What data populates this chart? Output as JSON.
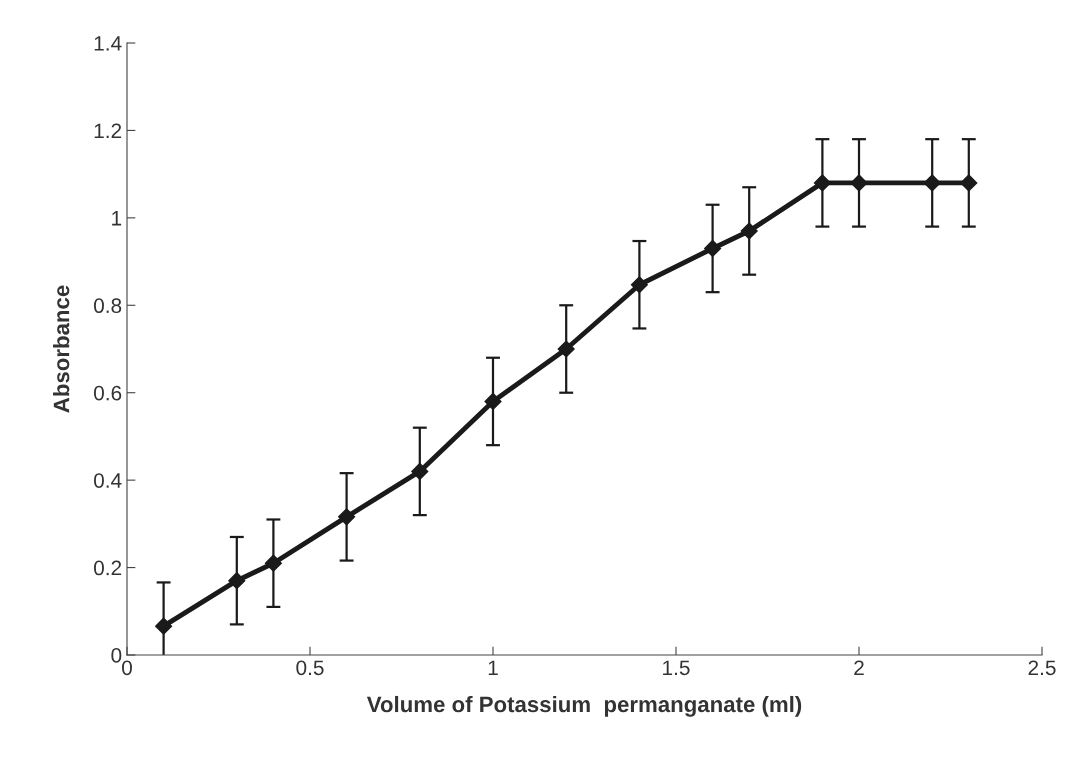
{
  "chart_data": {
    "type": "line",
    "xlabel": "Volume of Potassium  permanganate (ml)",
    "ylabel": "Absorbance",
    "x": [
      0.1,
      0.3,
      0.4,
      0.6,
      0.8,
      1.0,
      1.2,
      1.4,
      1.6,
      1.7,
      1.9,
      2.0,
      2.2,
      2.3
    ],
    "series": [
      {
        "color": "#1a1a1a",
        "values": [
          0.066,
          0.17,
          0.21,
          0.316,
          0.42,
          0.58,
          0.7,
          0.847,
          0.93,
          0.97,
          1.08,
          1.08,
          1.08,
          1.08
        ],
        "errors": [
          0.1,
          0.1,
          0.1,
          0.1,
          0.1,
          0.1,
          0.1,
          0.1,
          0.1,
          0.1,
          0.1,
          0.1,
          0.1,
          0.1
        ]
      }
    ],
    "xlim": [
      0,
      2.5
    ],
    "xticks": [
      0,
      0.5,
      1,
      1.5,
      2,
      2.5
    ],
    "ylim": [
      0,
      1.4
    ],
    "yticks": [
      0,
      0.2,
      0.4,
      0.6,
      0.8,
      1,
      1.2,
      1.4
    ],
    "marker": "diamond",
    "line_style": "solid",
    "grid": false,
    "legend": false
  }
}
